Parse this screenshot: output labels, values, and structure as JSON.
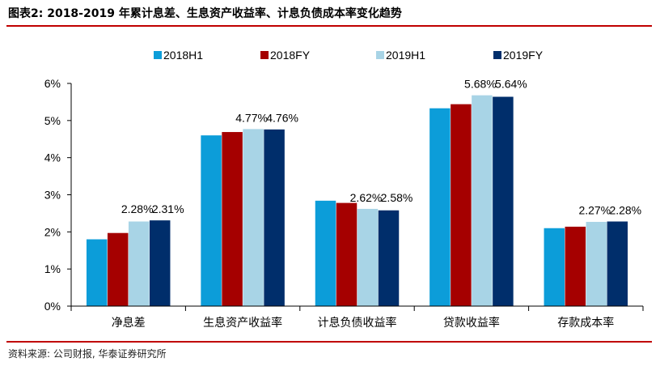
{
  "header": {
    "title": "图表2: 2018-2019 年累计息差、生息资产收益率、计息负债成本率变化趋势"
  },
  "footer": {
    "source": "资料来源: 公司财报, 华泰证券研究所"
  },
  "chart_data": {
    "type": "bar",
    "title": "",
    "xlabel": "",
    "ylabel": "",
    "ylim": [
      0,
      6
    ],
    "yticks": [
      "0%",
      "1%",
      "2%",
      "3%",
      "4%",
      "5%",
      "6%"
    ],
    "grid": false,
    "legend_position": "top",
    "categories": [
      "净息差",
      "生息资产收益率",
      "计息负债收益率",
      "贷款收益率",
      "存款成本率"
    ],
    "series": [
      {
        "name": "2018H1",
        "color": "#0c9dd9",
        "values": [
          1.8,
          4.6,
          2.84,
          5.33,
          2.1
        ]
      },
      {
        "name": "2018FY",
        "color": "#a50000",
        "values": [
          1.97,
          4.69,
          2.78,
          5.44,
          2.14
        ]
      },
      {
        "name": "2019H1",
        "color": "#a8d4e6",
        "values": [
          2.28,
          4.77,
          2.62,
          5.68,
          2.27
        ]
      },
      {
        "name": "2019FY",
        "color": "#002e6b",
        "values": [
          2.31,
          4.76,
          2.58,
          5.64,
          2.28
        ]
      }
    ],
    "data_labels": [
      [
        "2.28%",
        "2.31%"
      ],
      [
        "4.77%",
        "4.76%"
      ],
      [
        "2.62%",
        "2.58%"
      ],
      [
        "5.68%",
        "5.64%"
      ],
      [
        "2.27%",
        "2.28%"
      ]
    ]
  },
  "colors": {
    "rule": "#c00000",
    "axis": "#000000"
  }
}
